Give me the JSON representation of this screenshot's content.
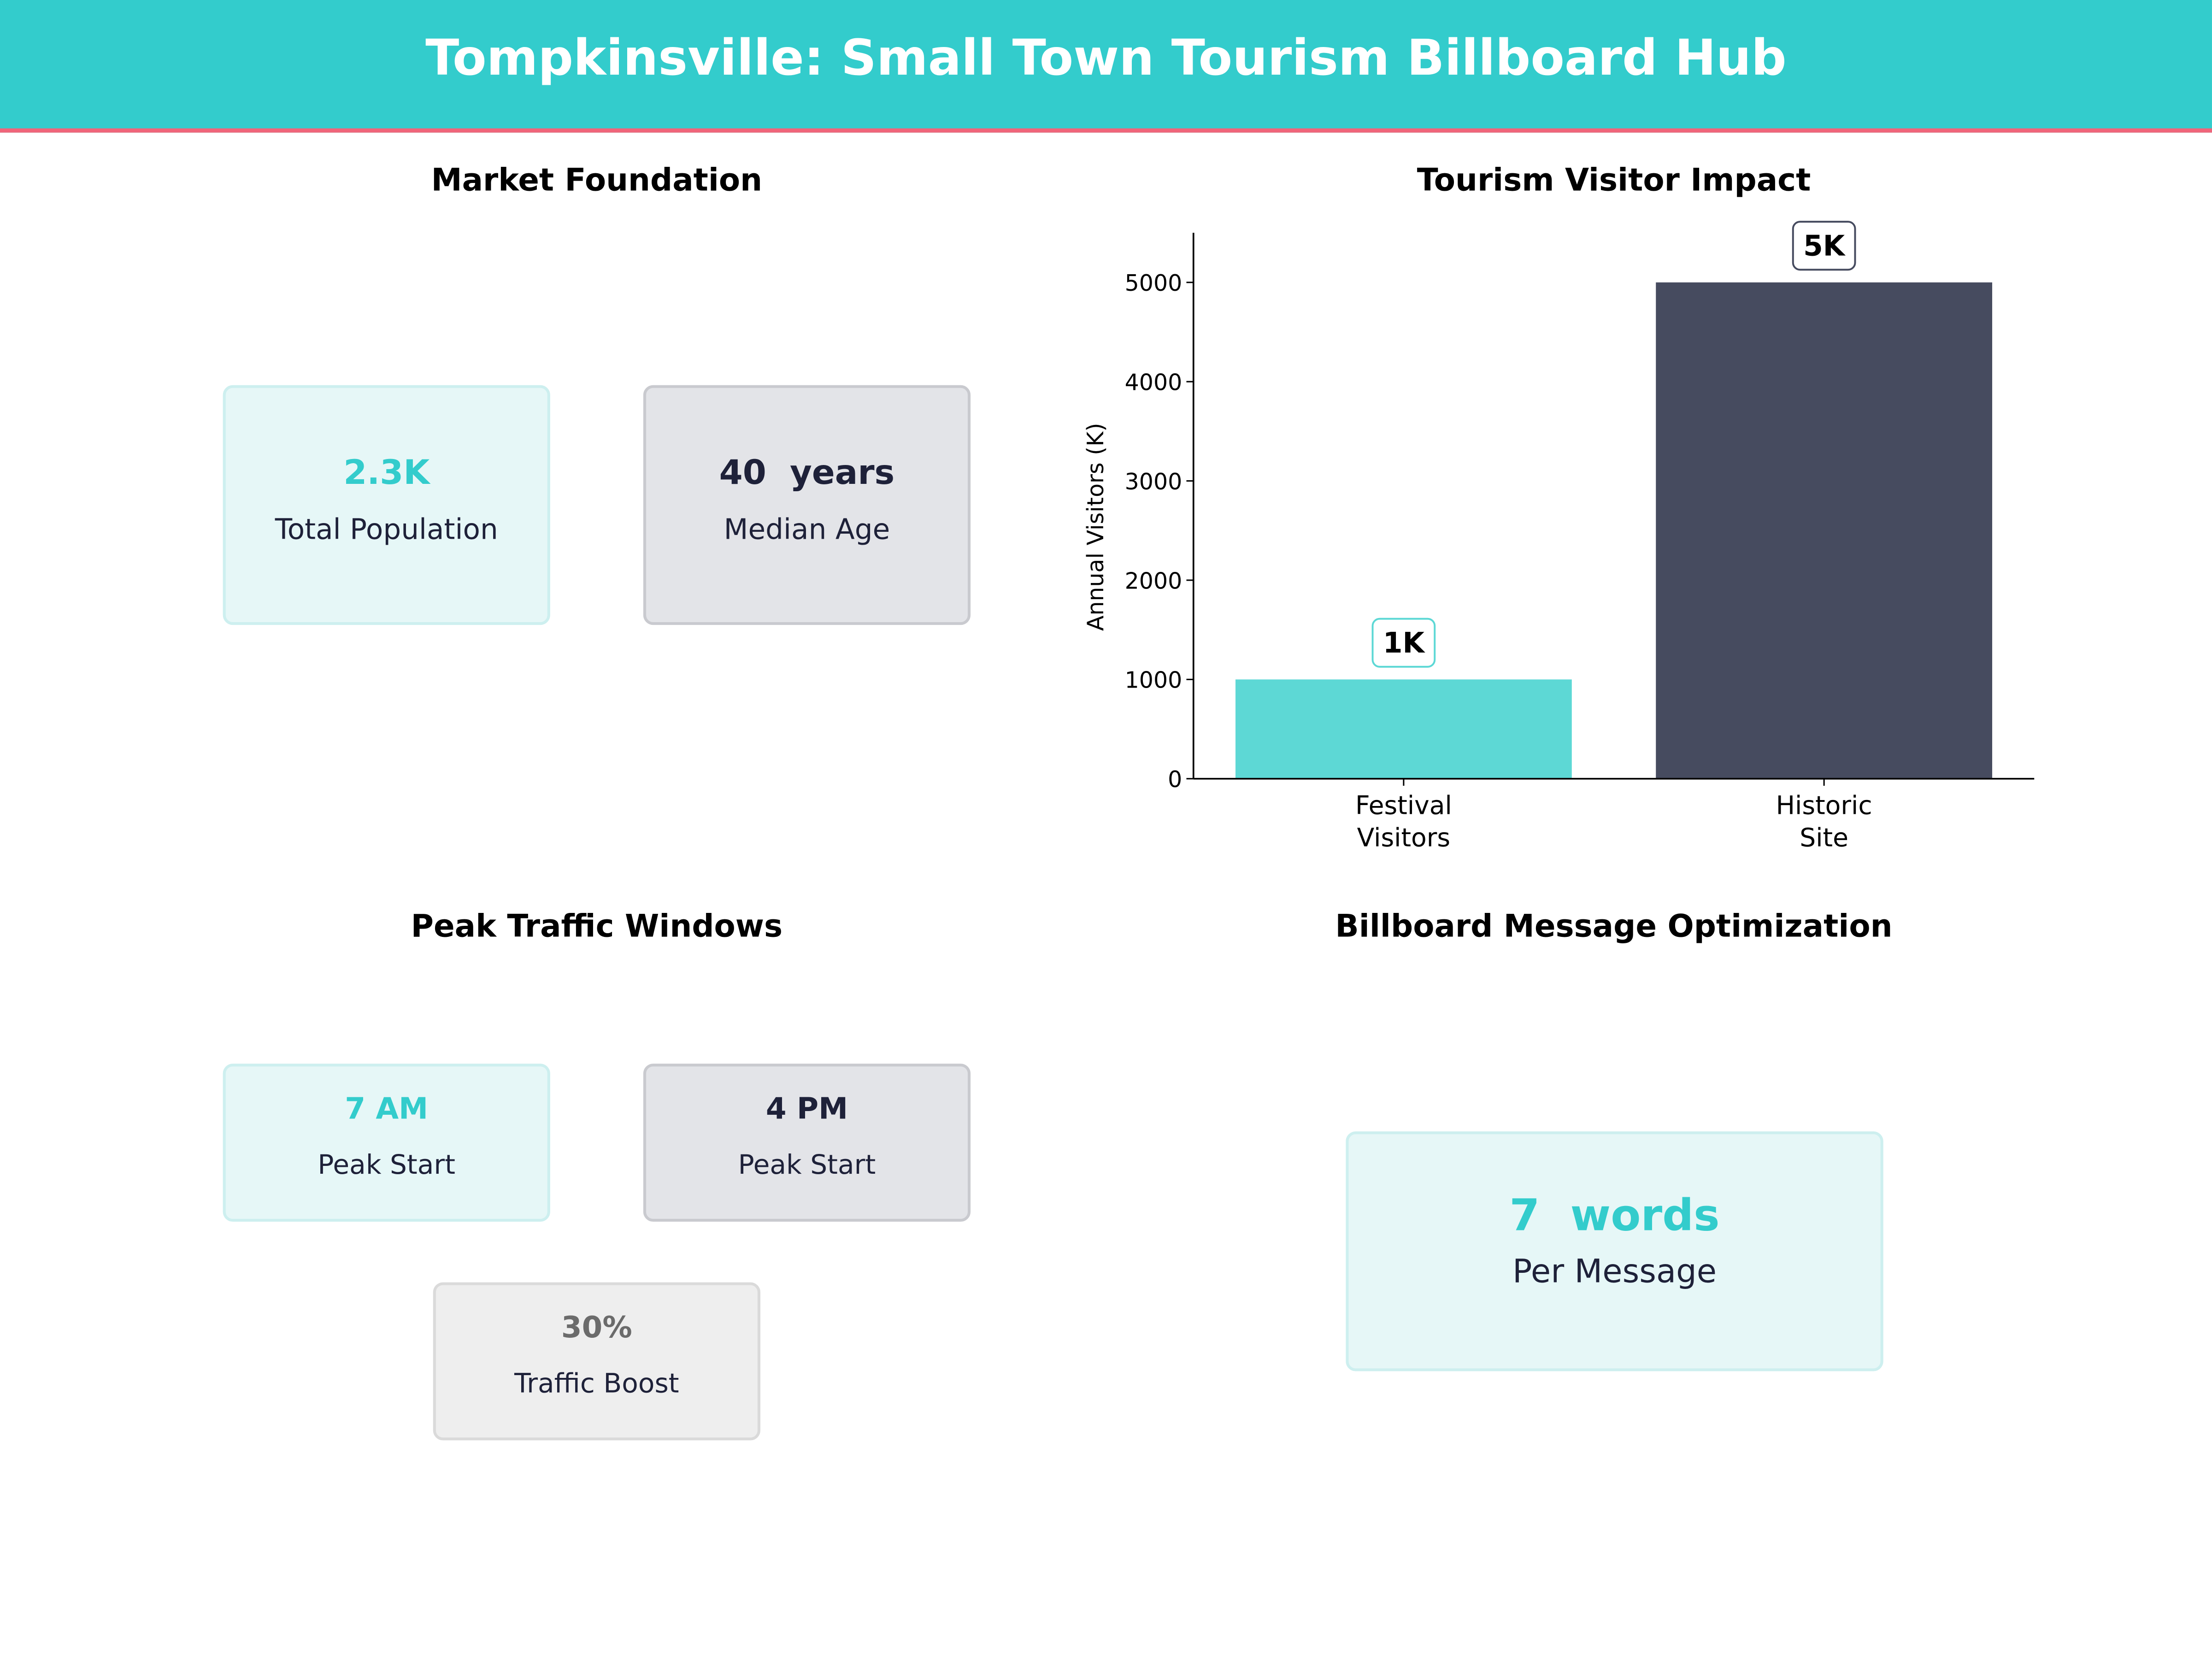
{
  "header": {
    "title": "Tompkinsville: Small Town Tourism Billboard Hub"
  },
  "colors": {
    "teal": "#33CCCC",
    "accent_line": "#F0657A",
    "navy": "#464B5F",
    "bar_teal": "#5DD8D5"
  },
  "market": {
    "title": "Market Foundation",
    "cards": [
      {
        "value": "2.3K",
        "label": "Total Population"
      },
      {
        "value": "40  years",
        "label": "Median Age"
      }
    ]
  },
  "traffic": {
    "title": "Peak Traffic Windows",
    "cards": [
      {
        "value": "7 AM",
        "label": "Peak Start"
      },
      {
        "value": "4 PM",
        "label": "Peak Start"
      },
      {
        "value": "30%",
        "label": "Traffic Boost"
      }
    ]
  },
  "billboard": {
    "title": "Billboard Message Optimization",
    "card": {
      "value": "7  words",
      "label": "Per Message"
    }
  },
  "chart_data": {
    "type": "bar",
    "title": "Tourism Visitor Impact",
    "xlabel": "",
    "ylabel": "Annual Visitors (K)",
    "categories": [
      "Festival\nVisitors",
      "Historic\nSite"
    ],
    "category_lines": [
      [
        "Festival",
        "Visitors"
      ],
      [
        "Historic",
        "Site"
      ]
    ],
    "values": [
      1000,
      5000
    ],
    "data_labels": [
      "1K",
      "5K"
    ],
    "bar_colors": [
      "#5DD8D5",
      "#464B5F"
    ],
    "ylim": [
      0,
      5500
    ],
    "yticks": [
      "0",
      "1000",
      "2000",
      "3000",
      "4000",
      "5000"
    ],
    "grid": false
  }
}
